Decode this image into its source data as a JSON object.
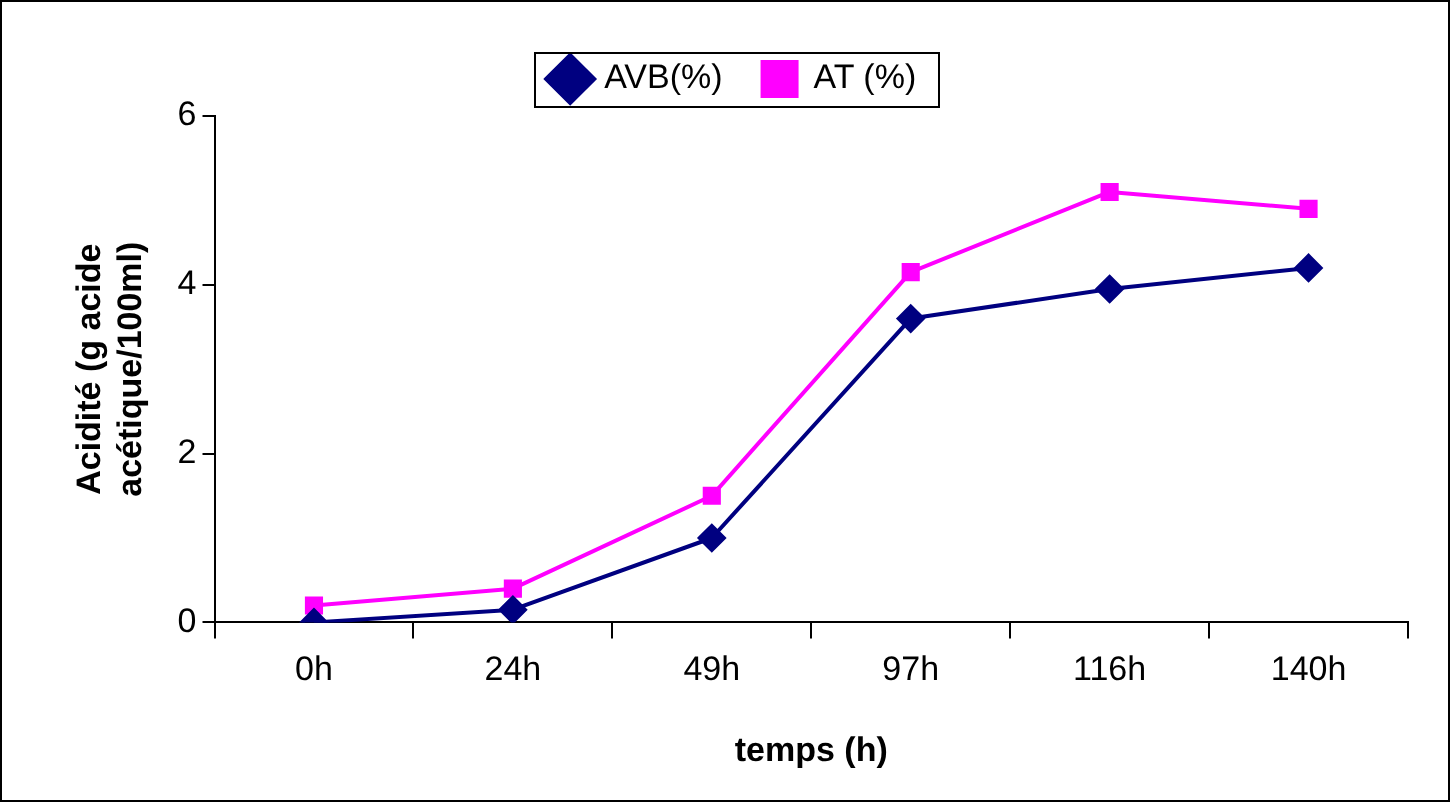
{
  "chart_data": {
    "type": "line",
    "xlabel": "temps (h)",
    "ylabel": "Acidité (g acide acétique/100ml)",
    "categories": [
      "0h",
      "24h",
      "49h",
      "97h",
      "116h",
      "140h"
    ],
    "series": [
      {
        "name": "AVB(%)",
        "color": "#000080",
        "marker": "diamond",
        "values": [
          0,
          0.15,
          1.0,
          3.6,
          3.95,
          4.2
        ]
      },
      {
        "name": "AT (%)",
        "color": "#ff00ff",
        "marker": "square",
        "values": [
          0.2,
          0.4,
          1.5,
          4.15,
          5.1,
          4.9
        ]
      }
    ],
    "ylim": [
      0,
      6
    ],
    "yticks": [
      0,
      2,
      4,
      6
    ],
    "grid": false,
    "legend": "top",
    "line_style": "solid"
  }
}
